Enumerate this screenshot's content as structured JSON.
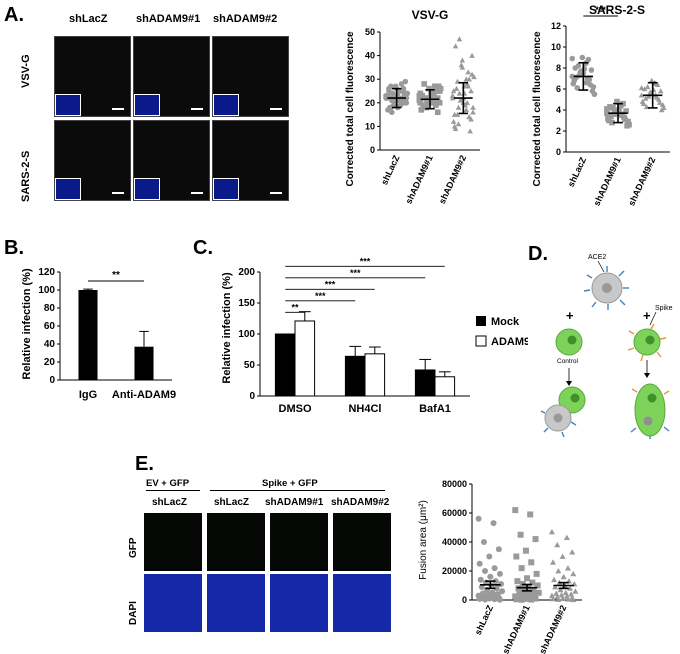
{
  "panels": {
    "A": "A.",
    "B": "B.",
    "C": "C.",
    "D": "D.",
    "E": "E."
  },
  "panelA": {
    "col_headers": [
      "shLacZ",
      "shADAM9#1",
      "shADAM9#2"
    ],
    "row_labels": [
      "VSV-G",
      "SARS-2-S"
    ]
  },
  "panelD": {
    "ace2": "ACE2",
    "spike": "Spike",
    "control": "Control",
    "plus": "+"
  },
  "panelE": {
    "group1": "EV + GFP",
    "group2": "Spike + GFP",
    "col_headers": [
      "shLacZ",
      "shLacZ",
      "shADAM9#1",
      "shADAM9#2"
    ],
    "row_labels": [
      "GFP",
      "DAPI"
    ]
  },
  "chart_data": [
    {
      "id": "vsvg",
      "type": "scatter",
      "title": "VSV-G",
      "ylabel": "Corrected total cell fluorescence",
      "categories": [
        "shLacZ",
        "shADAM9#1",
        "shADAM9#2"
      ],
      "ylim": [
        0,
        50
      ],
      "yticks": [
        0,
        10,
        20,
        30,
        40,
        50
      ],
      "summary": [
        {
          "mean": 22,
          "sd": 4
        },
        {
          "mean": 21.5,
          "sd": 4
        },
        {
          "mean": 22,
          "sd": 6.5
        }
      ],
      "series": [
        {
          "values": [
            22,
            25,
            18,
            20,
            27,
            23,
            19,
            21,
            24,
            26,
            17,
            28,
            22,
            20,
            23,
            25,
            21,
            19,
            24,
            22,
            18,
            26,
            20,
            23,
            21,
            27,
            24,
            19,
            22,
            25,
            16,
            29,
            21,
            23,
            20,
            24,
            22,
            18,
            26,
            22
          ]
        },
        {
          "values": [
            21,
            24,
            18,
            22,
            26,
            20,
            23,
            19,
            25,
            21,
            17,
            27,
            22,
            20,
            24,
            23,
            19,
            21,
            26,
            22,
            18,
            25,
            20,
            23,
            21,
            28,
            16,
            22,
            24,
            20,
            19,
            27,
            21,
            23,
            22,
            18,
            25,
            20,
            22,
            21
          ]
        },
        {
          "values": [
            22,
            30,
            15,
            25,
            35,
            12,
            28,
            18,
            40,
            20,
            10,
            33,
            24,
            16,
            27,
            44,
            14,
            21,
            31,
            19,
            26,
            8,
            36,
            23,
            17,
            29,
            13,
            38,
            25,
            20,
            11,
            32,
            22,
            15,
            27,
            47,
            18,
            24,
            9,
            30
          ]
        }
      ]
    },
    {
      "id": "sars",
      "type": "scatter",
      "title": "SARS-2-S",
      "ylabel": "Corrected total cell fluorescence",
      "categories": [
        "shLacZ",
        "shADAM9#1",
        "shADAM9#2"
      ],
      "ylim": [
        0,
        12
      ],
      "yticks": [
        0,
        2,
        4,
        6,
        8,
        10,
        12
      ],
      "summary": [
        {
          "mean": 7.2,
          "sd": 1.3
        },
        {
          "mean": 3.7,
          "sd": 0.9
        },
        {
          "mean": 5.4,
          "sd": 1.2
        }
      ],
      "series": [
        {
          "values": [
            7.2,
            8.5,
            6.1,
            7.8,
            9.0,
            6.5,
            7.0,
            8.2,
            5.8,
            7.5,
            6.8,
            8.8,
            7.3,
            6.2,
            7.9,
            8.0,
            6.9,
            7.6,
            5.5,
            8.4,
            7.1,
            6.4,
            7.7,
            8.9,
            6.6
          ]
        },
        {
          "values": [
            3.7,
            4.5,
            2.8,
            3.9,
            4.8,
            3.2,
            3.5,
            4.2,
            2.5,
            3.8,
            3.0,
            4.6,
            3.6,
            2.9,
            4.0,
            4.3,
            3.3,
            3.7,
            2.6,
            4.4,
            3.4,
            3.1,
            3.9,
            4.1,
            3.6
          ]
        },
        {
          "values": [
            5.4,
            6.5,
            4.3,
            5.8,
            6.8,
            4.8,
            5.2,
            6.2,
            4.0,
            5.5,
            4.6,
            6.4,
            5.3,
            4.5,
            5.9,
            6.0,
            5.0,
            5.6,
            4.2,
            6.6,
            5.1,
            4.7,
            5.7,
            6.1,
            5.4
          ]
        }
      ],
      "significance": [
        {
          "from": 0,
          "to": 1,
          "label": "***"
        },
        {
          "from": 0,
          "to": 2,
          "label": "***"
        }
      ]
    },
    {
      "id": "panelB",
      "type": "bar",
      "ylabel": "Relative infection (%)",
      "categories": [
        "IgG",
        "Anti-ADAM9"
      ],
      "values": [
        100,
        37
      ],
      "errors": [
        1,
        17
      ],
      "ylim": [
        0,
        120
      ],
      "yticks": [
        0,
        20,
        40,
        60,
        80,
        100,
        120
      ],
      "significance": [
        {
          "from": 0,
          "to": 1,
          "label": "**"
        }
      ]
    },
    {
      "id": "panelC",
      "type": "bar",
      "ylabel": "Relative infection (%)",
      "categories": [
        "DMSO",
        "NH4Cl",
        "BafA1"
      ],
      "series": [
        {
          "name": "Mock",
          "values": [
            100,
            64,
            42
          ],
          "errors": [
            0,
            16,
            17
          ]
        },
        {
          "name": "ADAM9",
          "values": [
            121,
            68,
            31
          ],
          "errors": [
            15,
            11,
            8
          ]
        }
      ],
      "ylim": [
        0,
        200
      ],
      "yticks": [
        0,
        50,
        100,
        150,
        200
      ],
      "significance": [
        {
          "from": [
            0,
            0
          ],
          "to": [
            0,
            1
          ],
          "label": "**"
        },
        {
          "from": [
            0,
            0
          ],
          "to": [
            1,
            0
          ],
          "label": "***"
        },
        {
          "from": [
            0,
            0
          ],
          "to": [
            1,
            1
          ],
          "label": "***"
        },
        {
          "from": [
            0,
            0
          ],
          "to": [
            2,
            0
          ],
          "label": "***"
        },
        {
          "from": [
            0,
            0
          ],
          "to": [
            2,
            1
          ],
          "label": "***"
        }
      ]
    },
    {
      "id": "fusion",
      "type": "scatter",
      "ylabel": "Fusion area (μm²)",
      "categories": [
        "shLacZ",
        "shADAM9#1",
        "shADAM9#2"
      ],
      "ylim": [
        0,
        80000
      ],
      "yticks": [
        0,
        20000,
        40000,
        60000,
        80000
      ],
      "summary": [
        {
          "mean": 10500,
          "sem": 2500
        },
        {
          "mean": 8500,
          "sem": 2200
        },
        {
          "mean": 10000,
          "sem": 2000
        }
      ],
      "series": [
        {
          "values": [
            56000,
            53000,
            40000,
            35000,
            30000,
            25000,
            22000,
            20000,
            18000,
            16000,
            14000,
            13000,
            12000,
            11000,
            10000,
            9000,
            8000,
            7000,
            6000,
            5000,
            4500,
            4000,
            3500,
            3000,
            2500,
            2000,
            1500,
            1000,
            800,
            500,
            300,
            200
          ]
        },
        {
          "values": [
            62000,
            59000,
            45000,
            42000,
            34000,
            30000,
            26000,
            22000,
            18000,
            15000,
            13000,
            12000,
            11000,
            10000,
            9000,
            8000,
            7000,
            6000,
            5000,
            4500,
            4000,
            3500,
            3000,
            2500,
            2000,
            1500,
            1000,
            800,
            500,
            300,
            200
          ]
        },
        {
          "values": [
            47000,
            43000,
            38000,
            33000,
            30000,
            26000,
            22000,
            20000,
            18000,
            16000,
            14000,
            13000,
            12000,
            11000,
            10000,
            9000,
            8000,
            7000,
            6000,
            5000,
            4500,
            4000,
            3500,
            3000,
            2500,
            2000,
            1500,
            1000,
            800,
            500,
            300,
            200
          ]
        }
      ]
    }
  ]
}
